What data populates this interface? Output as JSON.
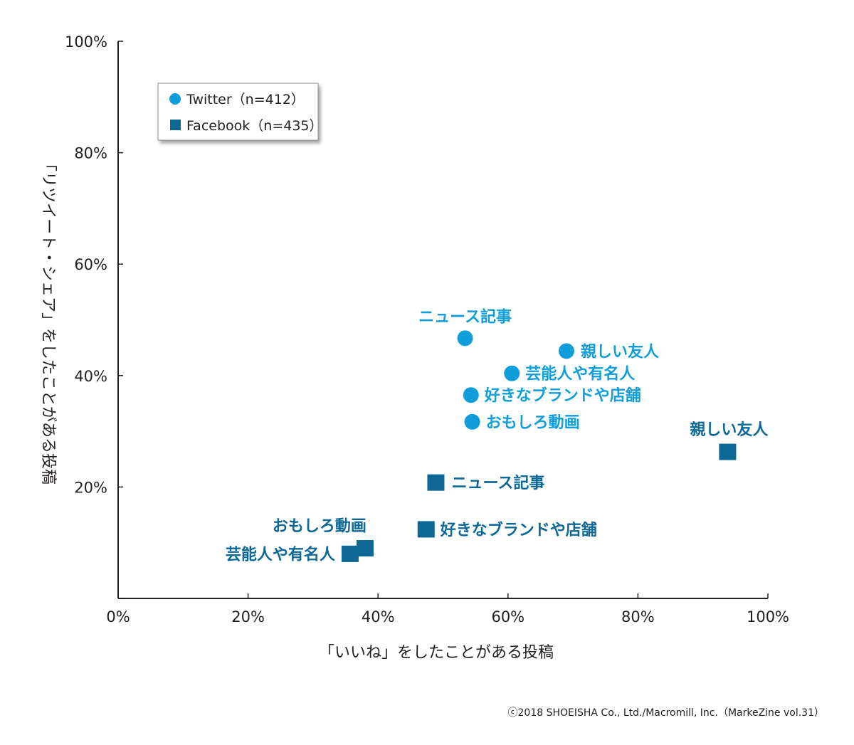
{
  "chart_data": {
    "type": "scatter",
    "xlabel": "「いいね」をしたことがある投稿",
    "ylabel": "「リツイート・シェア」をしたことがある投稿",
    "xlim": [
      0,
      100
    ],
    "ylim": [
      0,
      100
    ],
    "x_ticks": [
      "0%",
      "20%",
      "40%",
      "60%",
      "80%",
      "100%"
    ],
    "y_ticks": [
      "20%",
      "40%",
      "60%",
      "80%",
      "100%"
    ],
    "tick_values": [
      0,
      20,
      40,
      60,
      80,
      100
    ],
    "series": [
      {
        "name": "Twitter（n=412）",
        "marker": "circle",
        "color": "#0f9ed9",
        "points": [
          {
            "label": "ニュース記事",
            "x": 53.4,
            "y": 46.7
          },
          {
            "label": "親しい友人",
            "x": 69.0,
            "y": 44.4
          },
          {
            "label": "芸能人や有名人",
            "x": 60.6,
            "y": 40.4
          },
          {
            "label": "好きなブランドや店舗",
            "x": 54.3,
            "y": 36.5
          },
          {
            "label": "おもしろ動画",
            "x": 54.5,
            "y": 31.7
          }
        ]
      },
      {
        "name": "Facebook（n=435）",
        "marker": "square",
        "color": "#0d6896",
        "points": [
          {
            "label": "親しい友人",
            "x": 93.8,
            "y": 26.3
          },
          {
            "label": "ニュース記事",
            "x": 48.9,
            "y": 20.8
          },
          {
            "label": "好きなブランドや店舗",
            "x": 47.4,
            "y": 12.4
          },
          {
            "label": "おもしろ動画",
            "x": 38.0,
            "y": 9.0
          },
          {
            "label": "芸能人や有名人",
            "x": 35.7,
            "y": 8.0
          }
        ]
      }
    ],
    "legend_position": "top-left"
  },
  "copyright": "ⓒ2018 SHOEISHA Co., Ltd./Macromill, Inc.（MarkeZine vol.31）"
}
